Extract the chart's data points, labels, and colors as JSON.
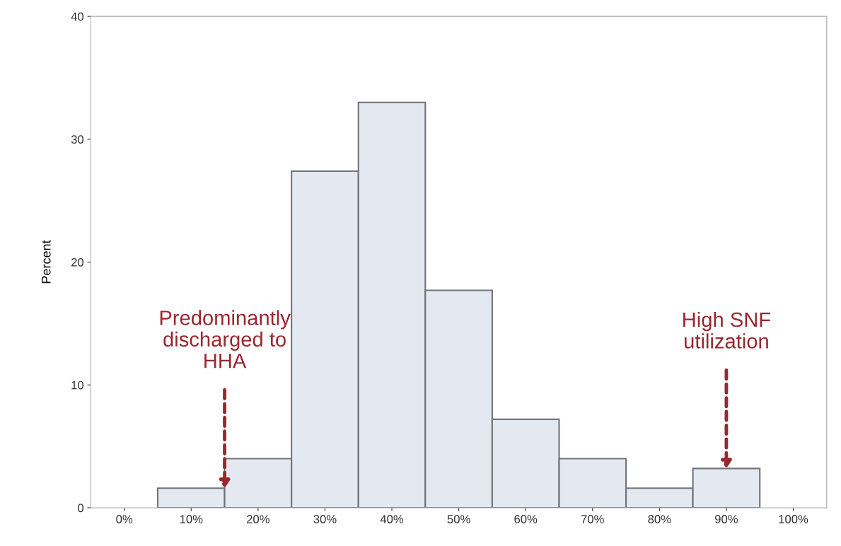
{
  "chart_data": {
    "type": "histogram",
    "ylabel": "Percent",
    "bins": [
      -5,
      5,
      15,
      25,
      35,
      45,
      55,
      65,
      75,
      85,
      95,
      105
    ],
    "values": [
      0,
      1.6,
      4.0,
      27.4,
      33.0,
      17.7,
      7.2,
      4.0,
      1.6,
      3.2,
      0
    ],
    "color": "#e4e8f0",
    "xlim": [
      -5,
      105
    ],
    "xticks": [
      {
        "value": 0,
        "label": "0%"
      },
      {
        "value": 10,
        "label": "10%"
      },
      {
        "value": 20,
        "label": "20%"
      },
      {
        "value": 30,
        "label": "30%"
      },
      {
        "value": 40,
        "label": "40%"
      },
      {
        "value": 50,
        "label": "50%"
      },
      {
        "value": 60,
        "label": "60%"
      },
      {
        "value": 70,
        "label": "70%"
      },
      {
        "value": 80,
        "label": "80%"
      },
      {
        "value": 90,
        "label": "90%"
      },
      {
        "value": 100,
        "label": "100%"
      }
    ],
    "ylim": [
      0,
      40
    ],
    "yticks": [
      0,
      10,
      20,
      30,
      40
    ],
    "grid": false,
    "annotations": [
      {
        "text": "Predominantly\ndischarged to\nHHA",
        "x": 15,
        "y": 1.6
      },
      {
        "text": "High SNF\nutilization",
        "x": 90,
        "y": 3.2
      }
    ]
  }
}
